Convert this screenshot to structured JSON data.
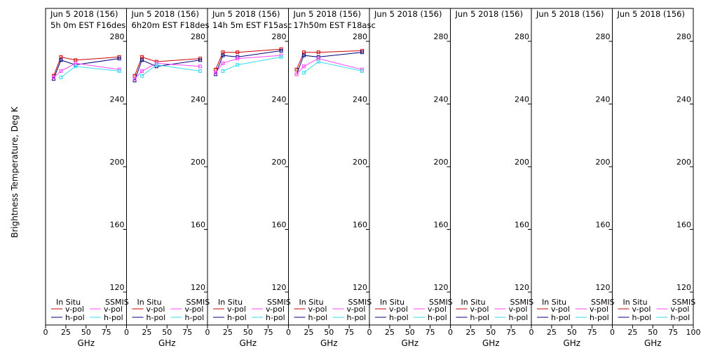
{
  "chart_data": {
    "type": "line",
    "ylabel": "Brightness Temperature, Deg K",
    "xlabel": "GHz",
    "ylim": [
      100,
      300
    ],
    "xlim": [
      0,
      100
    ],
    "yticks": [
      120,
      160,
      200,
      240,
      280
    ],
    "xticks": [
      0,
      25,
      50,
      75,
      100
    ],
    "xtick_labels": [
      "0",
      "25",
      "50",
      "75",
      "100"
    ],
    "legend": {
      "left_title": "In Situ",
      "right_title": "SSMIS",
      "left_entries": [
        "v-pol",
        "h-pol"
      ],
      "right_entries": [
        "v-pol",
        "h-pol"
      ],
      "placement": "bottom"
    },
    "colors": {
      "insitu_v": "#cc0000",
      "insitu_h": "#000080",
      "ssmis_v": "#ff44ff",
      "ssmis_h": "#33ddee"
    },
    "panels": [
      {
        "title_line1": "Jun 5 2018 (156)",
        "title_line2": "5h 0m  EST F16des",
        "series": [
          {
            "key": "insitu_v",
            "x": [
              10,
              19,
              37,
              91
            ],
            "y": [
              258,
              270,
              268,
              270
            ]
          },
          {
            "key": "insitu_h",
            "x": [
              10,
              19,
              37,
              91
            ],
            "y": [
              256,
              268,
              265,
              269
            ]
          },
          {
            "key": "ssmis_v",
            "x": [
              10,
              19,
              37,
              91
            ],
            "y": [
              257,
              261,
              266,
              262
            ]
          },
          {
            "key": "ssmis_h",
            "x": [
              19,
              37,
              91
            ],
            "y": [
              257,
              264,
              261
            ]
          }
        ]
      },
      {
        "title_line1": "Jun 5 2018 (156)",
        "title_line2": "6h20m  EST F18des",
        "series": [
          {
            "key": "insitu_v",
            "x": [
              10,
              19,
              37,
              91
            ],
            "y": [
              258,
              270,
              267,
              269
            ]
          },
          {
            "key": "insitu_h",
            "x": [
              10,
              19,
              37,
              91
            ],
            "y": [
              255,
              268,
              264,
              268
            ]
          },
          {
            "key": "ssmis_v",
            "x": [
              10,
              19,
              37,
              91
            ],
            "y": [
              256,
              261,
              266,
              264
            ]
          },
          {
            "key": "ssmis_h",
            "x": [
              19,
              37,
              91
            ],
            "y": [
              258,
              265,
              261
            ]
          }
        ]
      },
      {
        "title_line1": "Jun 5 2018 (156)",
        "title_line2": "14h 5m  EST F15asc",
        "series": [
          {
            "key": "insitu_v",
            "x": [
              10,
              19,
              37,
              91
            ],
            "y": [
              262,
              273,
              273,
              275
            ]
          },
          {
            "key": "insitu_h",
            "x": [
              10,
              19,
              37,
              91
            ],
            "y": [
              259,
              271,
              270,
              274
            ]
          },
          {
            "key": "ssmis_v",
            "x": [
              10,
              19,
              37,
              91
            ],
            "y": [
              260,
              266,
              269,
              271
            ]
          },
          {
            "key": "ssmis_h",
            "x": [
              19,
              37,
              91
            ],
            "y": [
              261,
              265,
              270
            ]
          }
        ]
      },
      {
        "title_line1": "Jun 5 2018 (156)",
        "title_line2": "17h50m  EST F18asc",
        "series": [
          {
            "key": "insitu_v",
            "x": [
              10,
              19,
              37,
              91
            ],
            "y": [
              262,
              273,
              273,
              274
            ]
          },
          {
            "key": "insitu_h",
            "x": [
              10,
              19,
              37,
              91
            ],
            "y": [
              259,
              271,
              270,
              273
            ]
          },
          {
            "key": "ssmis_v",
            "x": [
              10,
              19,
              37,
              91
            ],
            "y": [
              259,
              264,
              269,
              262
            ]
          },
          {
            "key": "ssmis_h",
            "x": [
              19,
              37,
              91
            ],
            "y": [
              260,
              267,
              261
            ]
          }
        ]
      },
      {
        "title_line1": "Jun 5 2018 (156)",
        "title_line2": "",
        "series": []
      },
      {
        "title_line1": "Jun 5 2018 (156)",
        "title_line2": "",
        "series": []
      },
      {
        "title_line1": "Jun 5 2018 (156)",
        "title_line2": "",
        "series": []
      },
      {
        "title_line1": "Jun 5 2018 (156)",
        "title_line2": "",
        "series": []
      }
    ]
  }
}
